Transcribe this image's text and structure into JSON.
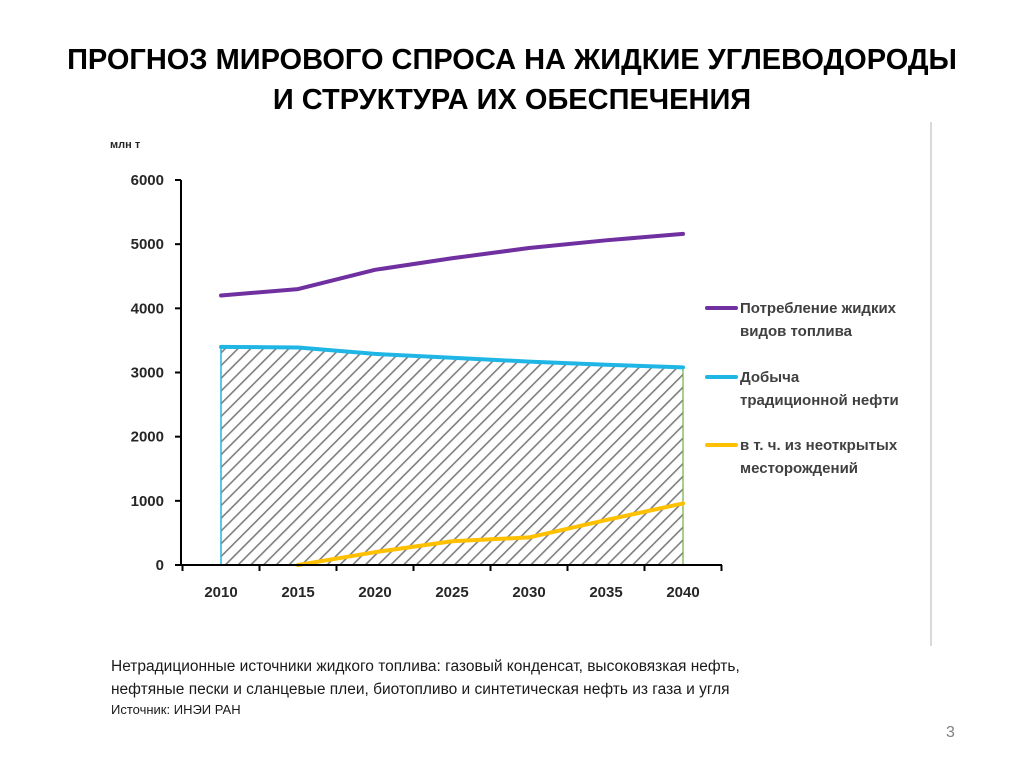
{
  "slide": {
    "title_line1": "ПРОГНОЗ МИРОВОГО СПРОСА НА ЖИДКИЕ УГЛЕВОДОРОДЫ",
    "title_line2": "И СТРУКТУРА ИХ ОБЕСПЕЧЕНИЯ",
    "footnote_line1": "Нетрадиционные источники жидкого топлива: газовый конденсат, высоковязкая нефть,",
    "footnote_line2": "нефтяные пески и сланцевые плеи, биотопливо и синтетическая нефть из газа и угля",
    "source": "Источник: ИНЭИ РАН",
    "page_number": "3"
  },
  "chart_data": {
    "type": "line",
    "title": "",
    "xlabel": "",
    "ylabel": "млн т",
    "categories": [
      "2010",
      "2015",
      "2020",
      "2025",
      "2030",
      "2035",
      "2040"
    ],
    "ylim": [
      0,
      6000
    ],
    "yticks": [
      0,
      1000,
      2000,
      3000,
      4000,
      5000,
      6000
    ],
    "grid": false,
    "legend_position": "right",
    "hatched_area_under": "Добыча традиционной нефти",
    "series": [
      {
        "name": "Потребление жидких видов топлива",
        "legend_lines": [
          "Потребление жидких",
          "видов топлива"
        ],
        "color": "#7030a0",
        "values": [
          4200,
          4300,
          4600,
          4780,
          4940,
          5060,
          5160
        ]
      },
      {
        "name": "Добыча традиционной нефти",
        "legend_lines": [
          "Добыча",
          "традиционной нефти"
        ],
        "color": "#1fb6e6",
        "values": [
          3400,
          3390,
          3290,
          3230,
          3170,
          3120,
          3080
        ]
      },
      {
        "name": "в т. ч. из неоткрытых месторождений",
        "legend_lines": [
          "в т. ч. из неоткрытых",
          "месторождений"
        ],
        "color": "#ffc000",
        "values": [
          null,
          0,
          200,
          370,
          430,
          700,
          960
        ]
      }
    ]
  }
}
